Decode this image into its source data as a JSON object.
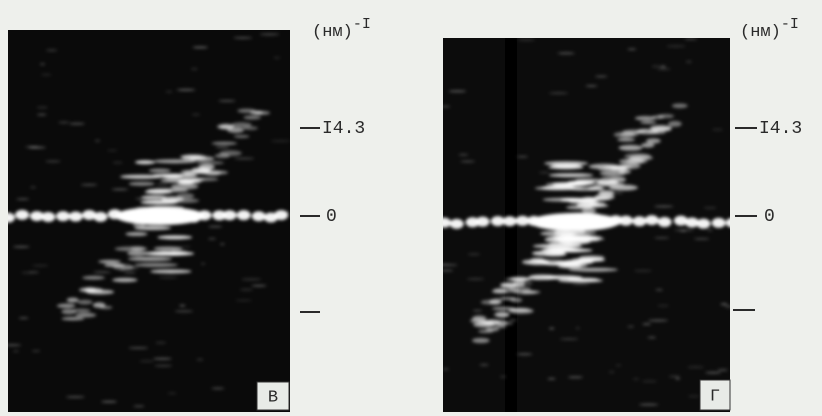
{
  "panels": [
    {
      "label": "В",
      "unit": "(нм)",
      "unit_exponent": "-I",
      "tick_labels": [
        "I4.3",
        "0"
      ]
    },
    {
      "label": "Г",
      "unit": "(нм)",
      "unit_exponent": "-I",
      "tick_labels": [
        "I4.3",
        "0"
      ]
    }
  ]
}
